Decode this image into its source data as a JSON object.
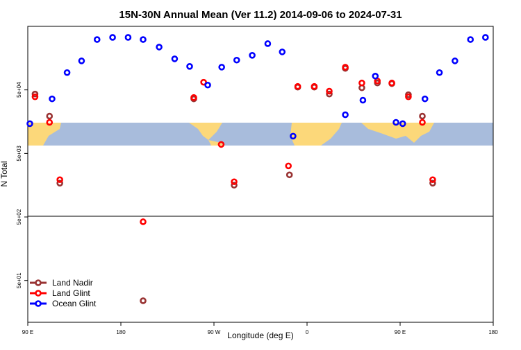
{
  "chart_data": {
    "type": "scatter",
    "title": "15N-30N Annual Mean (Ver 11.2)   2014-09-06 to 2024-07-31",
    "x_label": "Longitude (deg E)",
    "y_label": "N Total",
    "log_y": true,
    "legend": "bottom-left",
    "xlim": [
      90,
      540
    ],
    "xticks": [
      {
        "value": 90,
        "label": "90 E"
      },
      {
        "value": 180,
        "label": "180"
      },
      {
        "value": 270,
        "label": "90 W"
      },
      {
        "value": 360,
        "label": "0"
      },
      {
        "value": 450,
        "label": "90 E"
      },
      {
        "value": 540,
        "label": "180"
      }
    ],
    "ylim": [
      11,
      500000
    ],
    "yticks": [
      {
        "value": 50,
        "label": "5e+01"
      },
      {
        "value": 500,
        "label": "5e+02"
      },
      {
        "value": 5000,
        "label": "5e+03"
      },
      {
        "value": 50000,
        "label": "5e+04"
      }
    ],
    "series": [
      {
        "name": "Land Nadir",
        "color": "#993333",
        "x": [
          97,
          111,
          121,
          201.5,
          250.5,
          289.5,
          343,
          351,
          367,
          381.5,
          397,
          413,
          428,
          442,
          458,
          471.5,
          481.5
        ],
        "values": [
          43000,
          19300,
          1700,
          24,
          36100,
          1580,
          2300,
          55200,
          55200,
          43000,
          109000,
          53900,
          64200,
          62700,
          42000,
          19300,
          1700
        ]
      },
      {
        "name": "Land Glint",
        "color": "#ff0000",
        "x": [
          97,
          111,
          121,
          201.5,
          250.5,
          260,
          277,
          289.5,
          342,
          351,
          367,
          381.5,
          397,
          413,
          428,
          442,
          458,
          471.5,
          481.5
        ],
        "values": [
          38900,
          15400,
          1930,
          420,
          37900,
          65900,
          6920,
          1790,
          3180,
          56700,
          56700,
          47700,
          114000,
          64200,
          69200,
          64200,
          38900,
          15400,
          1930
        ]
      },
      {
        "name": "Ocean Glint",
        "color": "#0000ff",
        "x": [
          92,
          113.5,
          128,
          142,
          157,
          172,
          187,
          201.5,
          217,
          232,
          246.5,
          264,
          277.5,
          292,
          307,
          322,
          336,
          346.5,
          397,
          414,
          426,
          446,
          452.5,
          474,
          488,
          503,
          518,
          532.5
        ],
        "values": [
          14700,
          36100,
          93500,
          143000,
          310000,
          335000,
          335000,
          310000,
          236000,
          154000,
          117000,
          59500,
          114000,
          147000,
          175000,
          267000,
          198000,
          9350,
          20300,
          34400,
          82400,
          15400,
          14700,
          36100,
          93500,
          143000,
          310000,
          335000
        ]
      }
    ]
  }
}
